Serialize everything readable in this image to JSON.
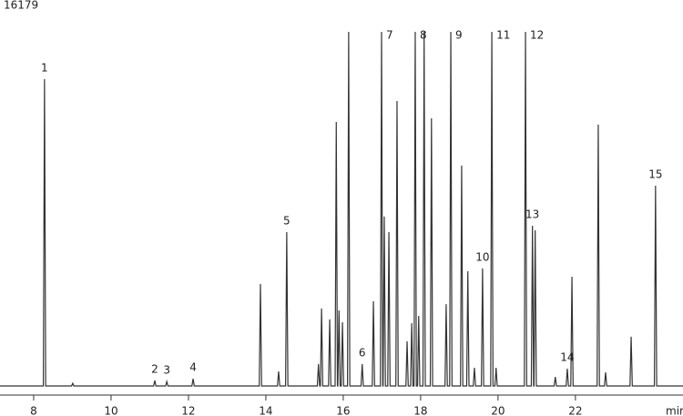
{
  "chart_data": {
    "type": "line",
    "xlabel": "min",
    "color": "#333333",
    "xlim": [
      7.13,
      24.78
    ],
    "ylim": [
      0,
      16179
    ],
    "xticks": [
      8,
      10,
      12,
      14,
      16,
      18,
      20,
      22
    ],
    "x": [
      7.13,
      8.25,
      8.28,
      8.31,
      8.98,
      9.01,
      9.04,
      11.1,
      11.13,
      11.16,
      11.41,
      11.44,
      11.47,
      12.09,
      12.12,
      12.15,
      13.83,
      13.86,
      13.89,
      14.3,
      14.33,
      14.36,
      14.51,
      14.54,
      14.57,
      15.33,
      15.36,
      15.39,
      15.41,
      15.44,
      15.47,
      15.62,
      15.65,
      15.68,
      15.79,
      15.82,
      15.85,
      15.86,
      15.89,
      15.92,
      15.95,
      15.98,
      16.01,
      16.11,
      16.14,
      16.17,
      16.46,
      16.49,
      16.52,
      16.75,
      16.78,
      16.81,
      16.96,
      16.99,
      17.02,
      17.03,
      17.06,
      17.09,
      17.15,
      17.18,
      17.21,
      17.36,
      17.39,
      17.42,
      17.62,
      17.65,
      17.68,
      17.74,
      17.77,
      17.8,
      17.83,
      17.86,
      17.89,
      17.92,
      17.95,
      17.98,
      18.06,
      18.09,
      18.12,
      18.25,
      18.28,
      18.31,
      18.63,
      18.66,
      18.69,
      18.75,
      18.78,
      18.81,
      19.03,
      19.06,
      19.09,
      19.19,
      19.22,
      19.25,
      19.36,
      19.39,
      19.42,
      19.57,
      19.6,
      19.63,
      19.81,
      19.84,
      19.87,
      19.92,
      19.95,
      19.98,
      20.68,
      20.71,
      20.74,
      20.86,
      20.89,
      20.92,
      20.93,
      20.96,
      20.99,
      21.45,
      21.48,
      21.51,
      21.76,
      21.79,
      21.82,
      21.88,
      21.91,
      21.94,
      22.56,
      22.59,
      22.62,
      22.75,
      22.78,
      22.81,
      23.41,
      23.44,
      23.47,
      24.04,
      24.07,
      24.1,
      24.78
    ],
    "values": [
      0,
      0,
      14019,
      0,
      0,
      125,
      0,
      0,
      250,
      0,
      0,
      200,
      0,
      0,
      330,
      0,
      0,
      4660,
      0,
      0,
      665,
      0,
      0,
      7030,
      0,
      0,
      1000,
      0,
      0,
      3540,
      0,
      0,
      3040,
      0,
      0,
      12060,
      0,
      0,
      3450,
      0,
      0,
      2910,
      0,
      0,
      16179,
      0,
      0,
      1000,
      0,
      0,
      3870,
      0,
      0,
      16179,
      0,
      0,
      7740,
      0,
      0,
      7030,
      0,
      0,
      13020,
      0,
      0,
      2040,
      0,
      0,
      2870,
      0,
      0,
      16179,
      0,
      0,
      3200,
      0,
      0,
      16179,
      0,
      0,
      12230,
      0,
      0,
      3740,
      0,
      0,
      16179,
      0,
      0,
      10070,
      0,
      0,
      5240,
      0,
      0,
      830,
      0,
      0,
      5370,
      0,
      0,
      16179,
      0,
      0,
      830,
      0,
      0,
      16179,
      0,
      0,
      7320,
      0,
      0,
      7110,
      0,
      0,
      415,
      0,
      0,
      790,
      0,
      0,
      4990,
      0,
      0,
      11940,
      0,
      0,
      620,
      0,
      0,
      2250,
      0,
      0,
      9150,
      0,
      0
    ],
    "annotations": [
      {
        "text": "1",
        "x": 8.28,
        "y": 14019
      },
      {
        "text": "2",
        "x": 11.13,
        "y": 250
      },
      {
        "text": "3",
        "x": 11.44,
        "y": 200
      },
      {
        "text": "4",
        "x": 12.12,
        "y": 330
      },
      {
        "text": "5",
        "x": 14.54,
        "y": 7030
      },
      {
        "text": "6",
        "x": 16.49,
        "y": 1000
      },
      {
        "text": "7",
        "x": 16.99,
        "y": 16179
      },
      {
        "text": "8",
        "x": 17.86,
        "y": 16179
      },
      {
        "text": "9",
        "x": 18.78,
        "y": 16179
      },
      {
        "text": "10",
        "x": 19.6,
        "y": 5370
      },
      {
        "text": "11",
        "x": 19.84,
        "y": 16179
      },
      {
        "text": "12",
        "x": 20.71,
        "y": 16179
      },
      {
        "text": "13",
        "x": 20.89,
        "y": 7320
      },
      {
        "text": "14",
        "x": 21.79,
        "y": 790
      },
      {
        "text": "15",
        "x": 24.07,
        "y": 9150
      }
    ]
  }
}
